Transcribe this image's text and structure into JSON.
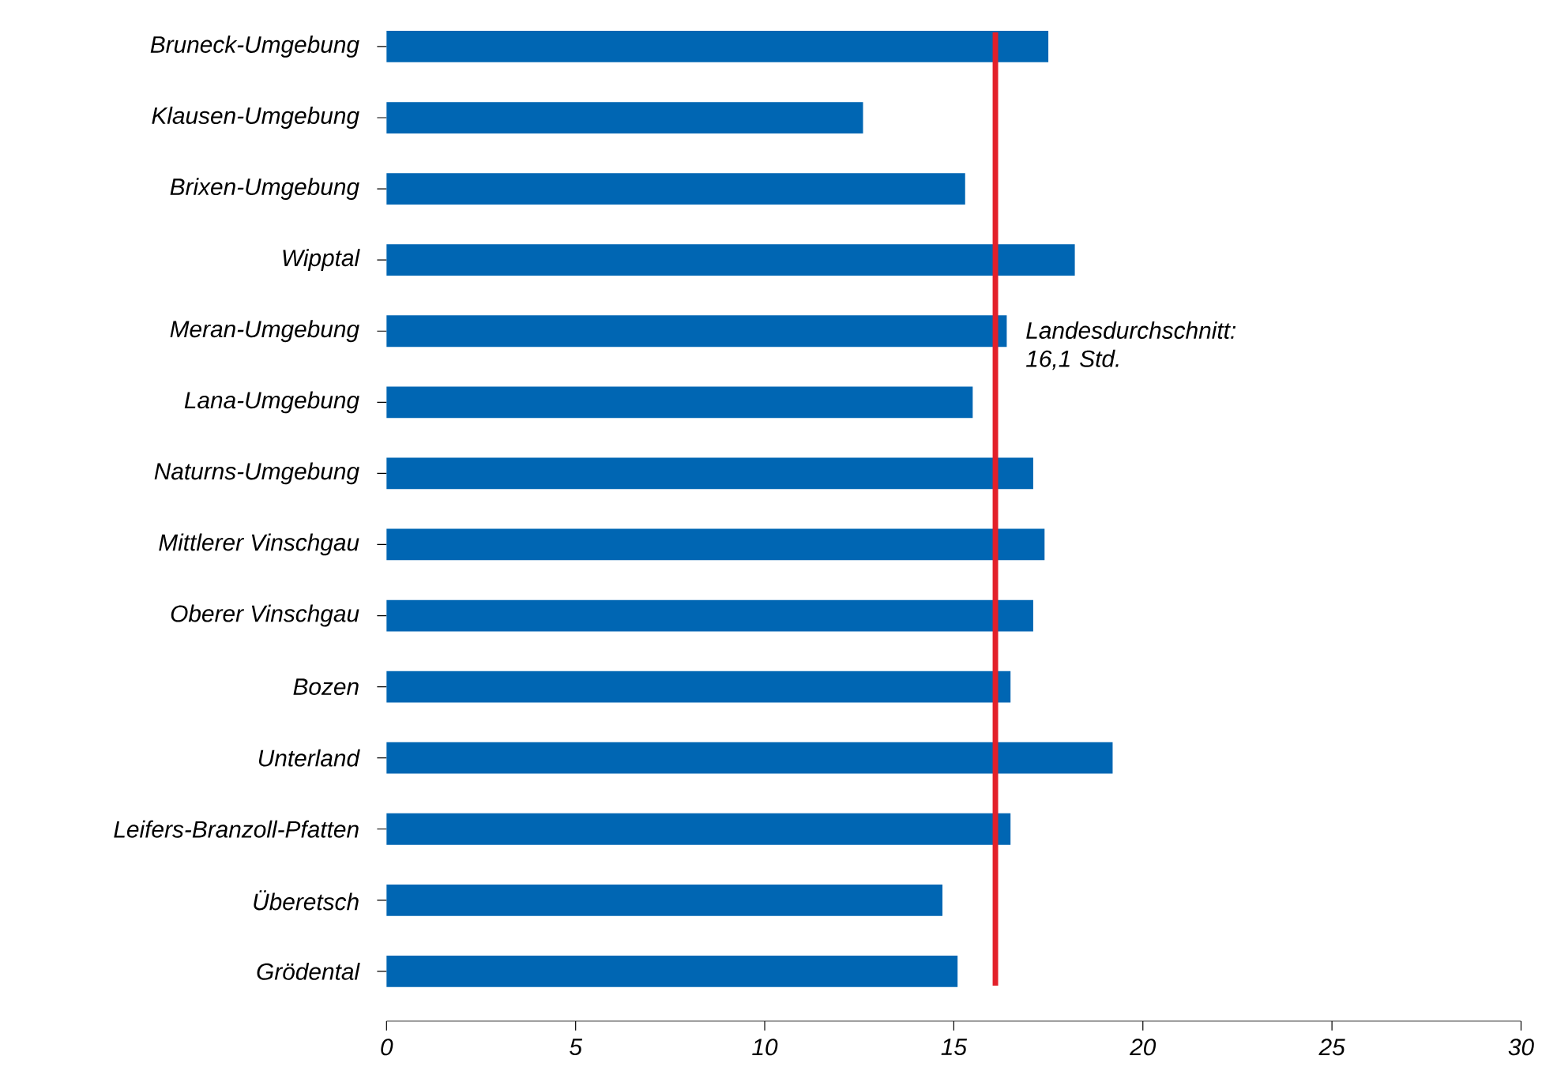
{
  "chart_data": {
    "type": "bar",
    "orientation": "horizontal",
    "categories": [
      "Bruneck-Umgebung",
      "Klausen-Umgebung",
      "Brixen-Umgebung",
      "Wipptal",
      "Meran-Umgebung",
      "Lana-Umgebung",
      "Naturns-Umgebung",
      "Mittlerer Vinschgau",
      "Oberer Vinschgau",
      "Bozen",
      "Unterland",
      "Leifers-Branzoll-Pfatten",
      "Überetsch",
      "Grödental"
    ],
    "values": [
      17.5,
      12.6,
      15.3,
      18.2,
      16.4,
      15.5,
      17.1,
      17.4,
      17.1,
      16.5,
      19.2,
      16.5,
      14.7,
      15.1
    ],
    "color": "#0066b3",
    "xlim": [
      0,
      30
    ],
    "xticks": [
      0,
      5,
      10,
      15,
      20,
      25,
      30
    ],
    "ref_lines": [
      {
        "axis": "x",
        "value": 16.1,
        "label": "Landesdurchschnitt: 16,1 Std.",
        "color": "#e3202a"
      }
    ],
    "grid": false
  }
}
